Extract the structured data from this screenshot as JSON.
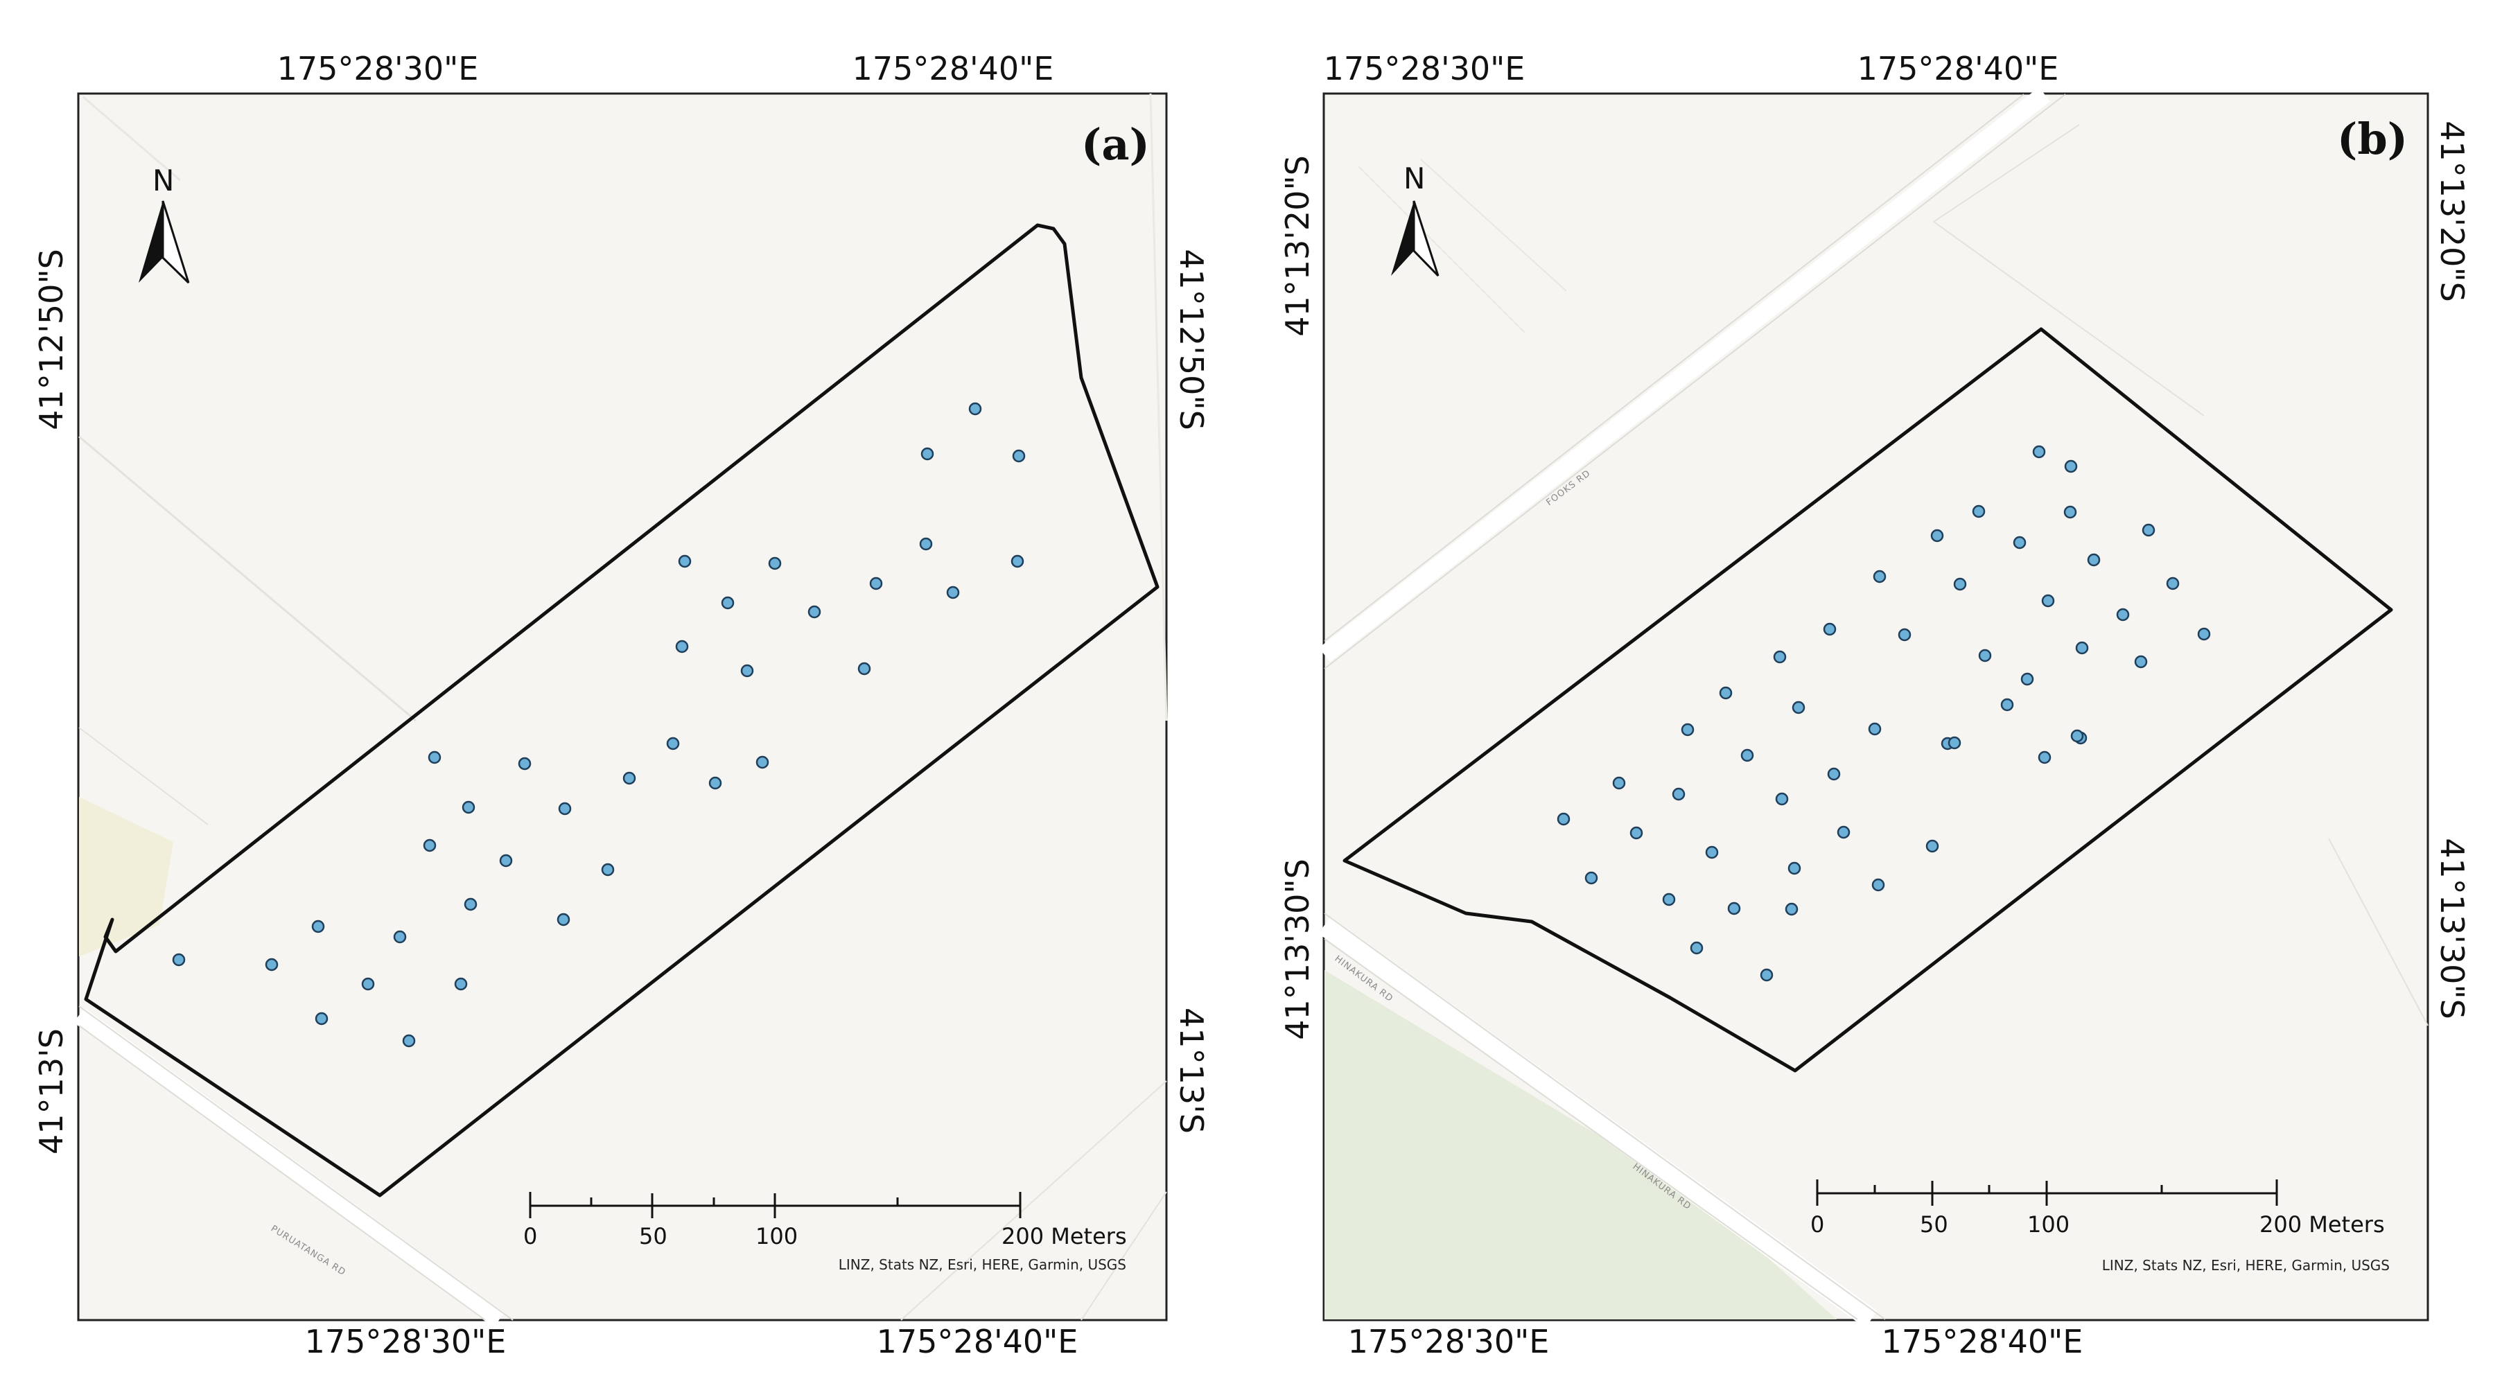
{
  "panels": [
    {
      "id": "a",
      "label": "(a)",
      "top_coords": [
        "175°28'30\"E",
        "175°28'40\"E"
      ],
      "bottom_coords": [
        "175°28'30\"E",
        "175°28'40\"E"
      ],
      "left_coords": [
        "41°12'50\"S",
        "41°13'S"
      ],
      "right_coords": [
        "41°12'50\"S",
        "41°13'S"
      ],
      "road_labels": [
        "PURUATANGA RD"
      ],
      "north_label": "N",
      "scale": {
        "ticks": [
          "0",
          "50",
          "100",
          "200 Meters"
        ]
      },
      "attribution": "LINZ, Stats NZ, Esri, HERE, Garmin, USGS"
    },
    {
      "id": "b",
      "label": "(b)",
      "top_coords": [
        "175°28'30\"E",
        "175°28'40\"E"
      ],
      "bottom_coords": [
        "175°28'30\"E",
        "175°28'40\"E"
      ],
      "left_coords": [
        "41°13'20\"S",
        "41°13'30\"S"
      ],
      "right_coords": [
        "41°13'20\"S",
        "41°13'30\"S"
      ],
      "road_labels": [
        "FOOKS RD",
        "HINAKURA RD",
        "HINAKURA RD"
      ],
      "north_label": "N",
      "scale": {
        "ticks": [
          "0",
          "50",
          "100",
          "200 Meters"
        ]
      },
      "attribution": "LINZ, Stats NZ, Esri, HERE, Garmin, USGS"
    }
  ],
  "colors": {
    "map_background": "#f6f5f1",
    "road": "#ffffff",
    "boundary": "#111111",
    "sample_point": "#6db0d8",
    "park": "#e6ecdc"
  },
  "legend_icons": [
    "north-arrow-icon",
    "sample-point-icon"
  ]
}
